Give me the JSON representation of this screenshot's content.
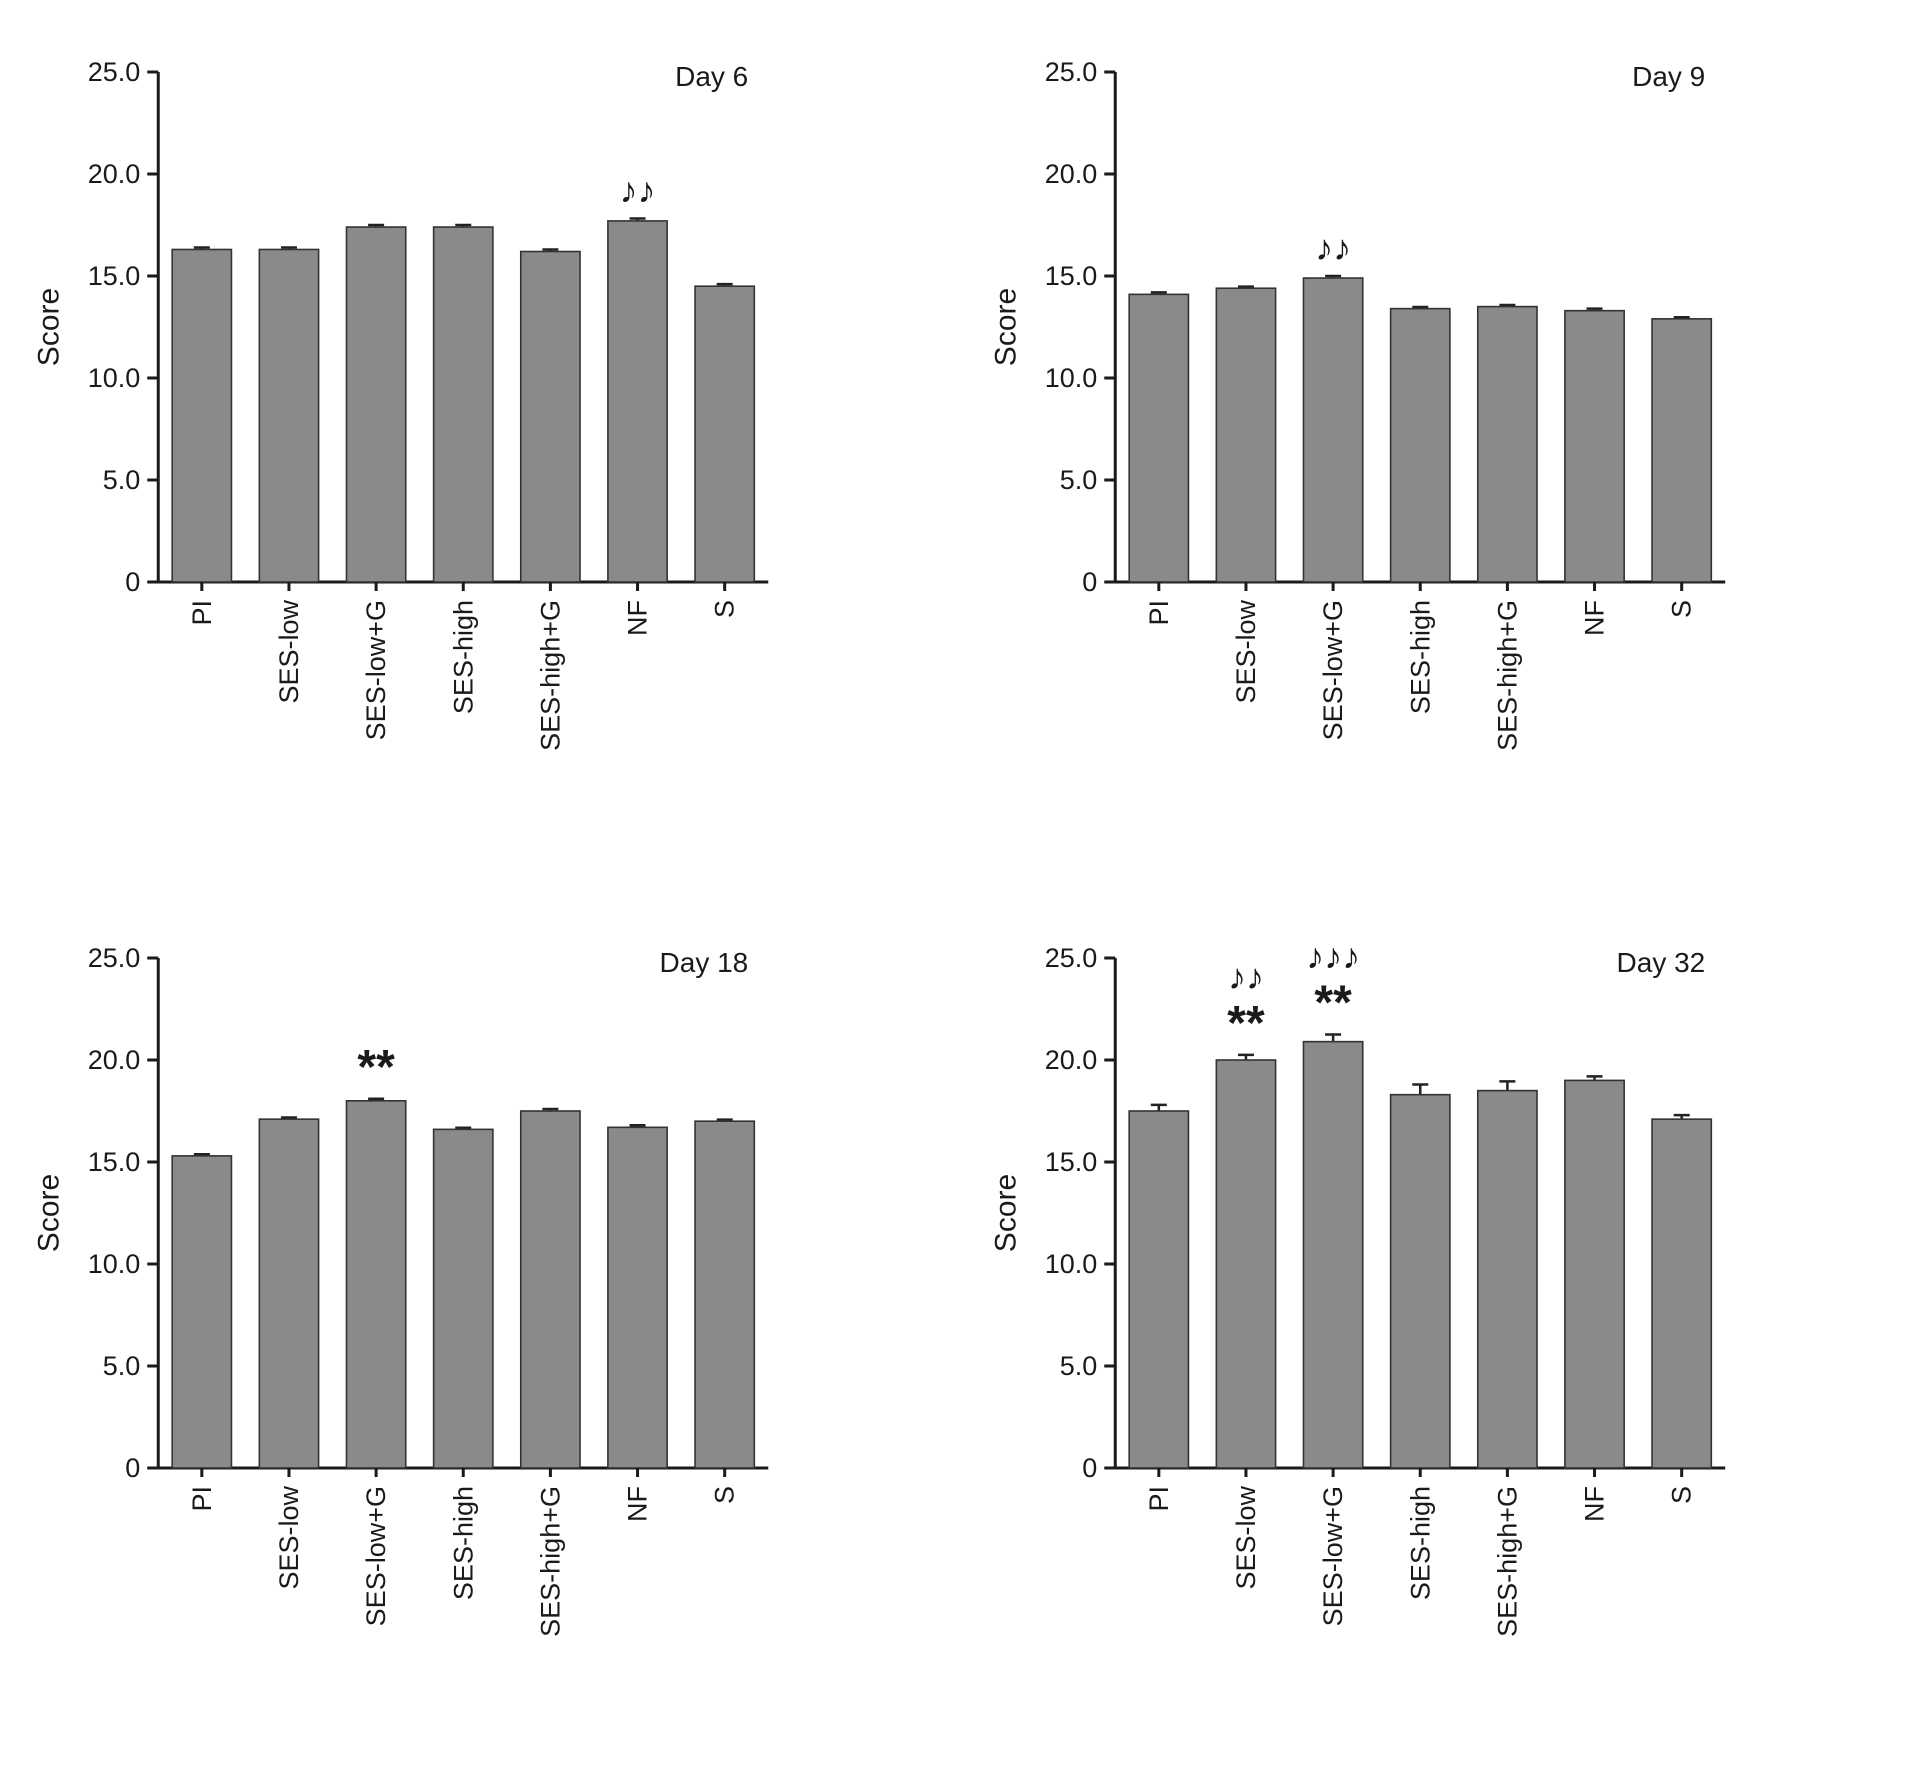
{
  "figure": {
    "ylabel": "Score",
    "categories": [
      "PI",
      "SES-low",
      "SES-low+G",
      "SES-high",
      "SES-high+G",
      "NF",
      "S"
    ],
    "bar_fill": "#8a8a8a",
    "bar_stroke": "#333333",
    "axis_color": "#1a1a1a"
  },
  "chart_data": [
    {
      "type": "bar",
      "title": "Day 6",
      "ylabel": "Score",
      "ylim": [
        0,
        25
      ],
      "ytick_values": [
        0,
        5,
        10,
        15,
        20,
        25
      ],
      "ytick_labels": [
        "0",
        "5.0",
        "10.0",
        "15.0",
        "20.0",
        "25.0"
      ],
      "categories": [
        "PI",
        "SES-low",
        "SES-low+G",
        "SES-high",
        "SES-high+G",
        "NF",
        "S"
      ],
      "values": [
        16.3,
        16.3,
        17.4,
        17.4,
        16.2,
        17.7,
        14.5
      ],
      "errors": [
        0.1,
        0.1,
        0.1,
        0.1,
        0.1,
        0.12,
        0.1
      ],
      "annotations": [
        {
          "index": 5,
          "lines": [
            "♪♪"
          ]
        }
      ]
    },
    {
      "type": "bar",
      "title": "Day 9",
      "ylabel": "Score",
      "ylim": [
        0,
        25
      ],
      "ytick_values": [
        0,
        5,
        10,
        15,
        20,
        25
      ],
      "ytick_labels": [
        "0",
        "5.0",
        "10.0",
        "15.0",
        "20.0",
        "25.0"
      ],
      "categories": [
        "PI",
        "SES-low",
        "SES-low+G",
        "SES-high",
        "SES-high+G",
        "NF",
        "S"
      ],
      "values": [
        14.1,
        14.4,
        14.9,
        13.4,
        13.5,
        13.3,
        12.9
      ],
      "errors": [
        0.1,
        0.08,
        0.1,
        0.08,
        0.08,
        0.1,
        0.08
      ],
      "annotations": [
        {
          "index": 2,
          "lines": [
            "♪♪"
          ]
        }
      ]
    },
    {
      "type": "bar",
      "title": "Day 18",
      "ylabel": "Score",
      "ylim": [
        0,
        25
      ],
      "ytick_values": [
        0,
        5,
        10,
        15,
        20,
        25
      ],
      "ytick_labels": [
        "0",
        "5.0",
        "10.0",
        "15.0",
        "20.0",
        "25.0"
      ],
      "categories": [
        "PI",
        "SES-low",
        "SES-low+G",
        "SES-high",
        "SES-high+G",
        "NF",
        "S"
      ],
      "values": [
        15.3,
        17.1,
        18.0,
        16.6,
        17.5,
        16.7,
        17.0
      ],
      "errors": [
        0.08,
        0.08,
        0.1,
        0.08,
        0.1,
        0.1,
        0.08
      ],
      "annotations": [
        {
          "index": 2,
          "lines": [
            "**"
          ]
        }
      ]
    },
    {
      "type": "bar",
      "title": "Day 32",
      "ylabel": "Score",
      "ylim": [
        0,
        25
      ],
      "ytick_values": [
        0,
        5,
        10,
        15,
        20,
        25
      ],
      "ytick_labels": [
        "0",
        "5.0",
        "10.0",
        "15.0",
        "20.0",
        "25.0"
      ],
      "categories": [
        "PI",
        "SES-low",
        "SES-low+G",
        "SES-high",
        "SES-high+G",
        "NF",
        "S"
      ],
      "values": [
        17.5,
        20.0,
        20.9,
        18.3,
        18.5,
        19.0,
        17.1
      ],
      "errors": [
        0.3,
        0.25,
        0.35,
        0.5,
        0.45,
        0.2,
        0.2
      ],
      "annotations": [
        {
          "index": 1,
          "lines": [
            "**",
            "♪♪"
          ]
        },
        {
          "index": 2,
          "lines": [
            "**",
            "♪♪♪"
          ]
        }
      ]
    }
  ]
}
